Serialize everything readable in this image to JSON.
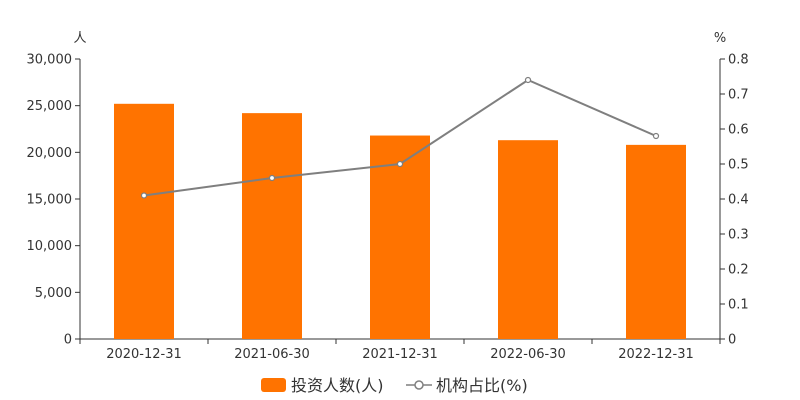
{
  "chart_data": {
    "type": "bar",
    "categories": [
      "2020-12-31",
      "2021-06-30",
      "2021-12-31",
      "2022-06-30",
      "2022-12-31"
    ],
    "series": [
      {
        "name": "投资人数(人)",
        "type": "bar",
        "axis": "left",
        "color": "#ff7300",
        "values": [
          25200,
          24200,
          21800,
          21300,
          20800
        ]
      },
      {
        "name": "机构占比(%)",
        "type": "line",
        "axis": "right",
        "color": "#7f7f7f",
        "values": [
          0.41,
          0.46,
          0.5,
          0.74,
          0.58
        ]
      }
    ],
    "y_left": {
      "unit": "人",
      "ylim": [
        0,
        30000
      ],
      "ticks": [
        "0",
        "5,000",
        "10,000",
        "15,000",
        "20,000",
        "25,000",
        "30,000"
      ]
    },
    "y_right": {
      "unit": "%",
      "ylim": [
        0,
        0.8
      ],
      "ticks": [
        "0",
        "0.1",
        "0.2",
        "0.3",
        "0.4",
        "0.5",
        "0.6",
        "0.7",
        "0.8"
      ]
    },
    "grid": false,
    "legend": "bottom-center"
  }
}
